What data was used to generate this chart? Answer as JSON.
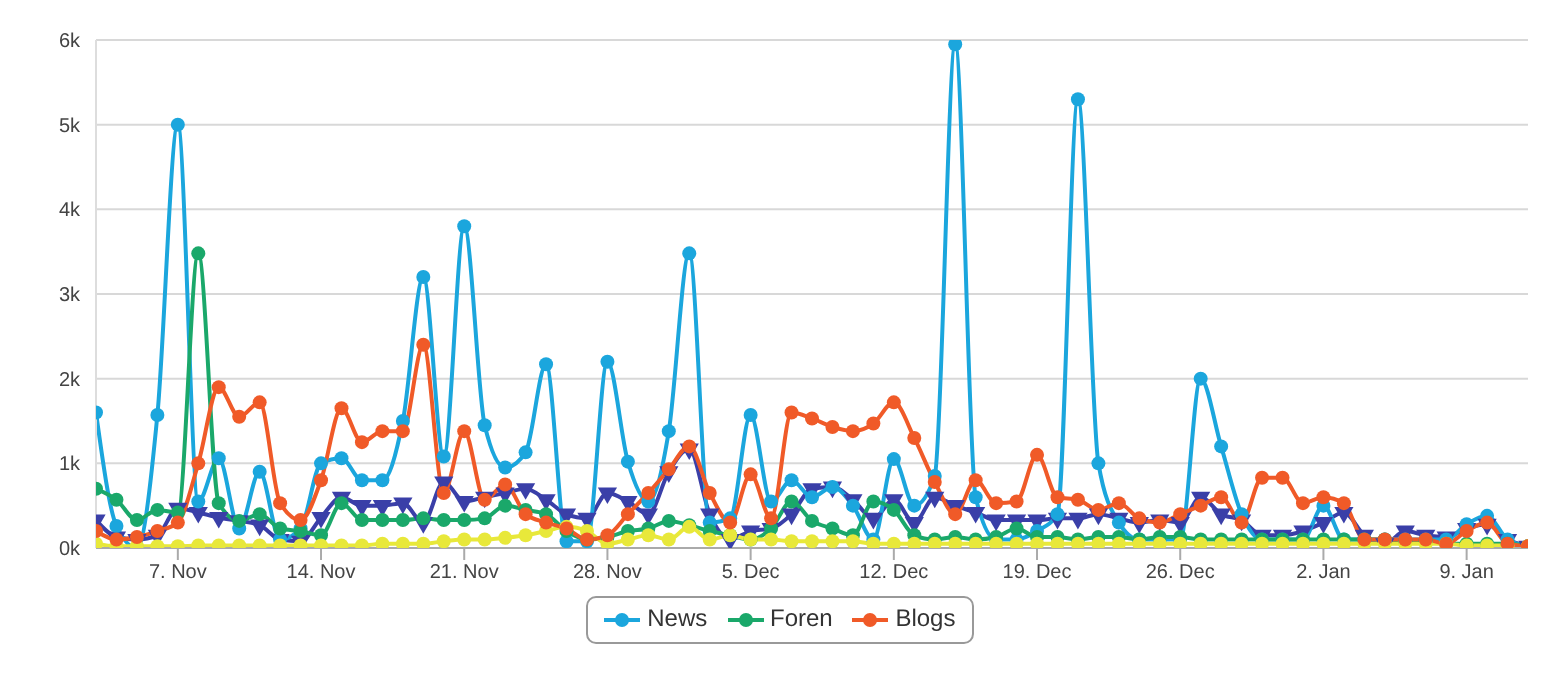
{
  "chart_data": {
    "type": "line",
    "categories": [
      null,
      null,
      null,
      null,
      "7. Nov",
      null,
      null,
      null,
      null,
      null,
      null,
      "14. Nov",
      null,
      null,
      null,
      null,
      null,
      null,
      "21. Nov",
      null,
      null,
      null,
      null,
      null,
      null,
      "28. Nov",
      null,
      null,
      null,
      null,
      null,
      null,
      "5. Dec",
      null,
      null,
      null,
      null,
      null,
      null,
      "12. Dec",
      null,
      null,
      null,
      null,
      null,
      null,
      "19. Dec",
      null,
      null,
      null,
      null,
      null,
      null,
      "26. Dec",
      null,
      null,
      null,
      null,
      null,
      null,
      "2. Jan",
      null,
      null,
      null,
      null,
      null,
      null,
      "9. Jan",
      null,
      null,
      null
    ],
    "series": [
      {
        "color": "#3a3fa8",
        "marker": "triangle",
        "values": [
          330,
          130,
          100,
          150,
          470,
          420,
          360,
          320,
          270,
          100,
          80,
          360,
          600,
          500,
          500,
          530,
          300,
          780,
          550,
          600,
          650,
          700,
          570,
          400,
          350,
          650,
          550,
          400,
          900,
          1170,
          400,
          100,
          200,
          230,
          400,
          700,
          720,
          570,
          350,
          570,
          300,
          600,
          500,
          420,
          330,
          330,
          330,
          350,
          350,
          400,
          350,
          300,
          330,
          300,
          600,
          400,
          330,
          150,
          150,
          200,
          300,
          420,
          150,
          50,
          200,
          150,
          130,
          230,
          280,
          100,
          20
        ]
      },
      {
        "name": "News",
        "color": "#1ba6dd",
        "marker": "circle",
        "values": [
          1600,
          260,
          0,
          1570,
          5000,
          550,
          1060,
          230,
          900,
          100,
          230,
          1000,
          1060,
          800,
          800,
          1500,
          3200,
          1080,
          3800,
          1450,
          950,
          1130,
          2170,
          80,
          80,
          2200,
          1020,
          550,
          1380,
          3480,
          300,
          350,
          1570,
          550,
          800,
          600,
          720,
          500,
          100,
          1050,
          500,
          850,
          5950,
          600,
          100,
          100,
          200,
          400,
          5300,
          1000,
          300,
          100,
          100,
          100,
          2000,
          1200,
          400,
          100,
          100,
          100,
          500,
          100,
          100,
          100,
          100,
          100,
          100,
          280,
          380,
          100,
          20
        ]
      },
      {
        "name": "Foren",
        "color": "#1aa86a",
        "marker": "circle",
        "values": [
          700,
          570,
          330,
          450,
          420,
          3480,
          530,
          320,
          400,
          230,
          200,
          150,
          530,
          330,
          330,
          330,
          350,
          330,
          330,
          350,
          500,
          450,
          400,
          200,
          100,
          130,
          200,
          230,
          320,
          270,
          200,
          150,
          100,
          230,
          550,
          320,
          230,
          150,
          550,
          450,
          150,
          100,
          130,
          100,
          130,
          230,
          130,
          130,
          100,
          130,
          130,
          100,
          130,
          130,
          100,
          100,
          100,
          100,
          100,
          100,
          100,
          100,
          100,
          100,
          80,
          80,
          50,
          50,
          50,
          50,
          20
        ]
      },
      {
        "color": "#e8e83a",
        "marker": "circle",
        "values": [
          50,
          20,
          20,
          20,
          20,
          30,
          30,
          30,
          30,
          30,
          30,
          30,
          30,
          30,
          50,
          50,
          50,
          80,
          100,
          100,
          120,
          150,
          200,
          250,
          200,
          50,
          100,
          150,
          100,
          250,
          100,
          150,
          100,
          100,
          80,
          80,
          80,
          80,
          50,
          50,
          50,
          50,
          50,
          50,
          50,
          50,
          50,
          50,
          50,
          50,
          50,
          50,
          50,
          50,
          50,
          50,
          50,
          50,
          50,
          50,
          50,
          50,
          50,
          50,
          50,
          50,
          50,
          30,
          30,
          30,
          20
        ]
      },
      {
        "name": "Blogs",
        "color": "#f05a28",
        "marker": "circle",
        "values": [
          200,
          100,
          130,
          200,
          300,
          1000,
          1900,
          1550,
          1720,
          530,
          330,
          800,
          1650,
          1250,
          1380,
          1380,
          2400,
          650,
          1380,
          570,
          750,
          400,
          300,
          230,
          100,
          150,
          400,
          650,
          930,
          1200,
          650,
          300,
          870,
          350,
          1600,
          1530,
          1430,
          1380,
          1470,
          1720,
          1300,
          780,
          400,
          800,
          530,
          550,
          1100,
          600,
          570,
          450,
          530,
          350,
          300,
          400,
          500,
          600,
          300,
          830,
          830,
          530,
          600,
          530,
          100,
          100,
          100,
          100,
          50,
          200,
          300,
          50,
          20
        ]
      }
    ],
    "ylim": [
      0,
      6000
    ],
    "yticks": [
      {
        "value": 0,
        "label": "0k"
      },
      {
        "value": 1000,
        "label": "1k"
      },
      {
        "value": 2000,
        "label": "2k"
      },
      {
        "value": 3000,
        "label": "3k"
      },
      {
        "value": 4000,
        "label": "4k"
      },
      {
        "value": 5000,
        "label": "5k"
      },
      {
        "value": 6000,
        "label": "6k"
      }
    ],
    "grid": "y",
    "legend": "bottom",
    "line_style": "solid"
  }
}
